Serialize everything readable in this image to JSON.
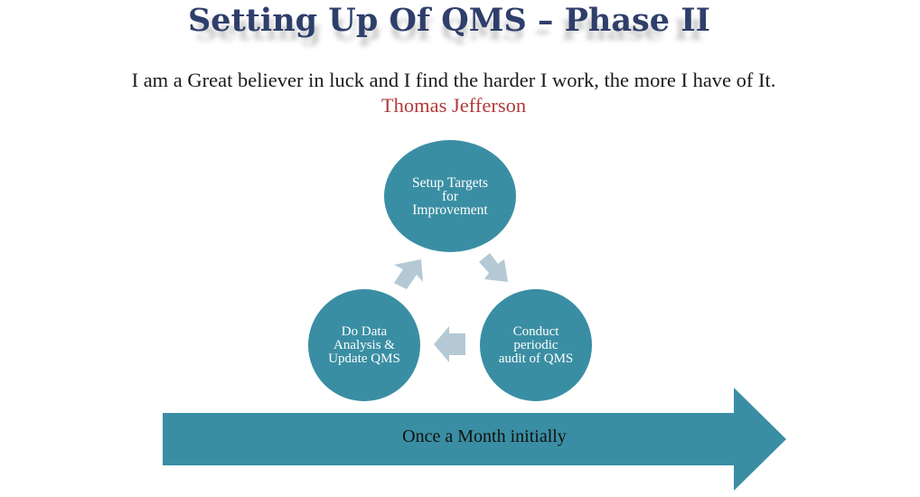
{
  "slide": {
    "title": "Setting Up Of QMS – Phase II",
    "quote": "I am a Great believer in luck and I find the harder I work, the more I have of It.",
    "author": "Thomas Jefferson"
  },
  "cycle": {
    "nodes": [
      {
        "label": "Setup Targets\nfor\nImprovement"
      },
      {
        "label": "Conduct\nperiodic\naudit of QMS"
      },
      {
        "label": "Do Data\nAnalysis &\nUpdate QMS"
      }
    ]
  },
  "timeline": {
    "label": "Once a Month initially"
  },
  "colors": {
    "title": "#2f3f6b",
    "author": "#b23a3a",
    "circle": "#3a8ea3",
    "cycle_arrow": "#b4c9d4",
    "big_arrow": "#3a8ea3"
  }
}
